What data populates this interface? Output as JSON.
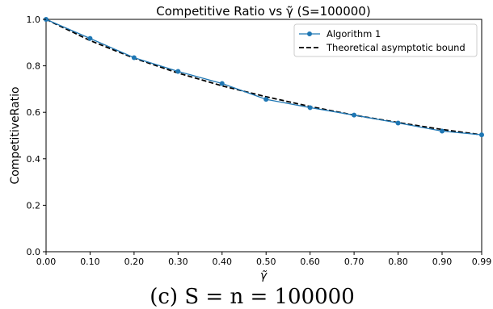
{
  "chart_data": {
    "type": "line",
    "title": "Competitive Ratio vs γ̃ (S=100000)",
    "xlabel": "γ̃",
    "ylabel": "CompetitiveRatio",
    "caption": "(c) S = n = 100000",
    "xlim": [
      0.0,
      0.99
    ],
    "ylim": [
      0.0,
      1.0
    ],
    "x_ticks": [
      "0.00",
      "0.10",
      "0.20",
      "0.30",
      "0.40",
      "0.50",
      "0.60",
      "0.70",
      "0.80",
      "0.90",
      "0.99"
    ],
    "x_tick_values": [
      0.0,
      0.1,
      0.2,
      0.3,
      0.4,
      0.5,
      0.6,
      0.7,
      0.8,
      0.9,
      0.99
    ],
    "y_ticks": [
      "0.0",
      "0.2",
      "0.4",
      "0.6",
      "0.8",
      "1.0"
    ],
    "y_tick_values": [
      0.0,
      0.2,
      0.4,
      0.6,
      0.8,
      1.0
    ],
    "legend_position": "top-right",
    "series": [
      {
        "name": "Algorithm 1",
        "style": "solid-with-markers",
        "color": "#1f77b4",
        "x": [
          0.0,
          0.1,
          0.2,
          0.3,
          0.4,
          0.5,
          0.6,
          0.7,
          0.8,
          0.9,
          0.99
        ],
        "values": [
          1.0,
          0.918,
          0.835,
          0.776,
          0.724,
          0.656,
          0.62,
          0.588,
          0.554,
          0.519,
          0.503
        ]
      },
      {
        "name": "Theoretical asymptotic bound",
        "style": "dashed",
        "color": "#000000",
        "x": [
          0.0,
          0.1,
          0.2,
          0.3,
          0.4,
          0.5,
          0.6,
          0.7,
          0.8,
          0.9,
          0.99
        ],
        "values": [
          1.0,
          0.909,
          0.833,
          0.769,
          0.714,
          0.667,
          0.625,
          0.588,
          0.556,
          0.526,
          0.503
        ]
      }
    ]
  }
}
